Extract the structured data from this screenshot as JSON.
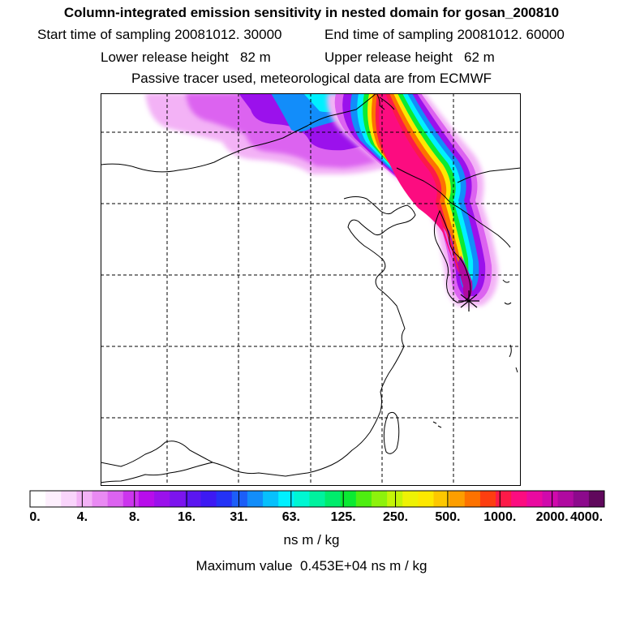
{
  "header": {
    "title": "Column-integrated emission sensitivity in nested domain for gosan_200810",
    "start_label": "Start time of sampling 20081012. 30000",
    "end_label": "End time of sampling 20081012. 60000",
    "lower_label": "Lower release height   82 m",
    "upper_label": "Upper release height   62 m",
    "subtitle": "Passive tracer used, meteorological data are from ECMWF"
  },
  "colorbar": {
    "labels": [
      "0.",
      "4.",
      "8.",
      "16.",
      "31.",
      "63.",
      "125.",
      "250.",
      "500.",
      "1000.",
      "2000.",
      "4000."
    ],
    "colors": [
      "#ffffff",
      "#fdeffd",
      "#f9d4fb",
      "#f3b2f6",
      "#e98af3",
      "#dc63f0",
      "#cc35ee",
      "#b80deb",
      "#9b11ec",
      "#7c14ee",
      "#5b16f0",
      "#3d19f3",
      "#2432f6",
      "#1c5ef8",
      "#128dfa",
      "#07c0fc",
      "#00f0ff",
      "#00f7d2",
      "#00f29e",
      "#00ec6c",
      "#0bea32",
      "#4eee10",
      "#8df20c",
      "#c4f508",
      "#eef205",
      "#fde800",
      "#fdc800",
      "#fd9e00",
      "#fd7200",
      "#fd3e10",
      "#fd1a48",
      "#fc0c80",
      "#ea0aa0",
      "#d00aac",
      "#b00aa0",
      "#8c0a8c",
      "#60085c"
    ],
    "units": "ns m / kg"
  },
  "footer": {
    "max_value_text": "Maximum value  0.453E+04 ns m / kg"
  },
  "map": {
    "receptor_marker": "star-marker",
    "plume_colors": {
      "faint": "#f3b2f6",
      "light": "#dc63f0",
      "violet": "#9b11ec",
      "blue": "#128dfa",
      "cyan": "#00f0ff",
      "green": "#0bea32",
      "yellow": "#fde800",
      "orange": "#fd7200",
      "red": "#fd1a48",
      "magenta": "#fc0c80",
      "purple": "#b00aa0"
    }
  }
}
